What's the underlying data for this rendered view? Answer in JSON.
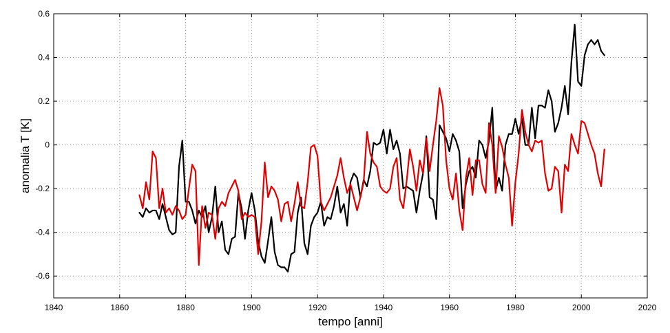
{
  "chart_data": {
    "type": "line",
    "title": "",
    "xlabel": "tempo [anni]",
    "ylabel": "anomalia T [K]",
    "xlim": [
      1840,
      2020
    ],
    "ylim": [
      -0.7,
      0.6
    ],
    "xticks": [
      1840,
      1860,
      1880,
      1900,
      1920,
      1940,
      1960,
      1980,
      2000,
      2020
    ],
    "yticks": [
      -0.6,
      -0.4,
      -0.2,
      0,
      0.2,
      0.4,
      0.6
    ],
    "xtick_labels": [
      "1840",
      "1860",
      "1880",
      "1900",
      "1920",
      "1940",
      "1960",
      "1980",
      "2000",
      "2020"
    ],
    "ytick_labels": [
      "-0.6",
      "-0.4",
      "-0.2",
      "0",
      "0.2",
      "0.4",
      "0.6"
    ],
    "grid": true,
    "legend": "none",
    "series": [
      {
        "color": "#000000",
        "x": [
          1866,
          1867,
          1868,
          1869,
          1870,
          1871,
          1872,
          1873,
          1874,
          1875,
          1876,
          1877,
          1878,
          1879,
          1880,
          1881,
          1882,
          1883,
          1884,
          1885,
          1886,
          1887,
          1888,
          1889,
          1890,
          1891,
          1892,
          1893,
          1894,
          1895,
          1896,
          1897,
          1898,
          1899,
          1900,
          1901,
          1902,
          1903,
          1904,
          1905,
          1906,
          1907,
          1908,
          1909,
          1910,
          1911,
          1912,
          1913,
          1914,
          1915,
          1916,
          1917,
          1918,
          1919,
          1920,
          1921,
          1922,
          1923,
          1924,
          1925,
          1926,
          1927,
          1928,
          1929,
          1930,
          1931,
          1932,
          1933,
          1934,
          1935,
          1936,
          1937,
          1938,
          1939,
          1940,
          1941,
          1942,
          1943,
          1944,
          1945,
          1946,
          1947,
          1948,
          1949,
          1950,
          1951,
          1952,
          1953,
          1954,
          1955,
          1956,
          1957,
          1958,
          1959,
          1960,
          1961,
          1962,
          1963,
          1964,
          1965,
          1966,
          1967,
          1968,
          1969,
          1970,
          1971,
          1972,
          1973,
          1974,
          1975,
          1976,
          1977,
          1978,
          1979,
          1980,
          1981,
          1982,
          1983,
          1984,
          1985,
          1986,
          1987,
          1988,
          1989,
          1990,
          1991,
          1992,
          1993,
          1994,
          1995,
          1996,
          1997,
          1998,
          1999,
          2000,
          2001,
          2002,
          2003,
          2004,
          2005,
          2006,
          2007
        ],
        "y": [
          -0.31,
          -0.33,
          -0.29,
          -0.31,
          -0.3,
          -0.3,
          -0.34,
          -0.27,
          -0.33,
          -0.39,
          -0.41,
          -0.4,
          -0.1,
          0.02,
          -0.26,
          -0.26,
          -0.3,
          -0.36,
          -0.3,
          -0.33,
          -0.28,
          -0.4,
          -0.33,
          -0.19,
          -0.4,
          -0.35,
          -0.48,
          -0.5,
          -0.43,
          -0.42,
          -0.22,
          -0.29,
          -0.43,
          -0.3,
          -0.22,
          -0.3,
          -0.44,
          -0.51,
          -0.54,
          -0.44,
          -0.33,
          -0.49,
          -0.55,
          -0.56,
          -0.56,
          -0.58,
          -0.5,
          -0.49,
          -0.31,
          -0.24,
          -0.45,
          -0.5,
          -0.37,
          -0.33,
          -0.31,
          -0.26,
          -0.37,
          -0.33,
          -0.34,
          -0.28,
          -0.19,
          -0.31,
          -0.27,
          -0.37,
          -0.17,
          -0.13,
          -0.15,
          -0.24,
          -0.16,
          -0.19,
          -0.12,
          0.01,
          0.0,
          0.01,
          0.07,
          -0.04,
          0.07,
          -0.02,
          0.02,
          -0.04,
          -0.2,
          -0.19,
          -0.2,
          -0.21,
          -0.31,
          -0.21,
          -0.13,
          0.04,
          -0.24,
          -0.25,
          -0.34,
          0.09,
          0.06,
          0.03,
          -0.03,
          0.05,
          0.02,
          -0.03,
          -0.29,
          -0.18,
          -0.12,
          -0.1,
          -0.15,
          0.02,
          0.0,
          -0.06,
          0.02,
          0.17,
          -0.21,
          -0.15,
          -0.21,
          0.0,
          0.05,
          0.05,
          0.12,
          0.05,
          0.12,
          0.0,
          0.0,
          0.17,
          0.03,
          0.18,
          0.18,
          0.17,
          0.25,
          0.2,
          0.06,
          0.1,
          0.17,
          0.27,
          0.14,
          0.38,
          0.55,
          0.29,
          0.27,
          0.41,
          0.46,
          0.48,
          0.46,
          0.48,
          0.43,
          0.41
        ]
      },
      {
        "color": "#e00000",
        "x": [
          1866,
          1867,
          1868,
          1869,
          1870,
          1871,
          1872,
          1873,
          1874,
          1875,
          1876,
          1877,
          1878,
          1879,
          1880,
          1881,
          1882,
          1883,
          1884,
          1885,
          1886,
          1887,
          1888,
          1889,
          1890,
          1891,
          1892,
          1893,
          1894,
          1895,
          1896,
          1897,
          1898,
          1899,
          1900,
          1901,
          1902,
          1903,
          1904,
          1905,
          1906,
          1907,
          1908,
          1909,
          1910,
          1911,
          1912,
          1913,
          1914,
          1915,
          1916,
          1917,
          1918,
          1919,
          1920,
          1921,
          1922,
          1923,
          1924,
          1925,
          1926,
          1927,
          1928,
          1929,
          1930,
          1931,
          1932,
          1933,
          1934,
          1935,
          1936,
          1937,
          1938,
          1939,
          1940,
          1941,
          1942,
          1943,
          1944,
          1945,
          1946,
          1947,
          1948,
          1949,
          1950,
          1951,
          1952,
          1953,
          1954,
          1955,
          1956,
          1957,
          1958,
          1959,
          1960,
          1961,
          1962,
          1963,
          1964,
          1965,
          1966,
          1967,
          1968,
          1969,
          1970,
          1971,
          1972,
          1973,
          1974,
          1975,
          1976,
          1977,
          1978,
          1979,
          1980,
          1981,
          1982,
          1983,
          1984,
          1985,
          1986,
          1987,
          1988,
          1989,
          1990,
          1991,
          1992,
          1993,
          1994,
          1995,
          1996,
          1997,
          1998,
          1999,
          2000,
          2001,
          2002,
          2003,
          2004,
          2005,
          2006,
          2007
        ],
        "y": [
          -0.23,
          -0.29,
          -0.17,
          -0.25,
          -0.03,
          -0.06,
          -0.29,
          -0.2,
          -0.31,
          -0.29,
          -0.32,
          -0.28,
          -0.3,
          -0.34,
          -0.32,
          -0.2,
          -0.09,
          -0.12,
          -0.55,
          -0.28,
          -0.38,
          -0.31,
          -0.32,
          -0.43,
          -0.29,
          -0.26,
          -0.28,
          -0.22,
          -0.19,
          -0.16,
          -0.21,
          -0.34,
          -0.31,
          -0.33,
          -0.32,
          -0.33,
          -0.5,
          -0.35,
          -0.08,
          -0.24,
          -0.19,
          -0.21,
          -0.25,
          -0.35,
          -0.27,
          -0.26,
          -0.35,
          -0.27,
          -0.17,
          -0.28,
          -0.29,
          -0.17,
          -0.01,
          0.0,
          -0.05,
          -0.26,
          -0.3,
          -0.27,
          -0.24,
          -0.19,
          -0.14,
          -0.06,
          -0.15,
          -0.22,
          -0.18,
          -0.24,
          -0.3,
          -0.24,
          -0.17,
          0.06,
          -0.04,
          -0.08,
          -0.1,
          -0.19,
          -0.21,
          -0.22,
          -0.2,
          -0.1,
          -0.06,
          -0.25,
          -0.29,
          -0.17,
          -0.02,
          -0.1,
          -0.21,
          -0.07,
          -0.13,
          0.03,
          -0.12,
          0.0,
          0.11,
          0.26,
          0.18,
          -0.07,
          -0.2,
          -0.25,
          -0.13,
          -0.3,
          -0.39,
          -0.15,
          -0.06,
          -0.23,
          -0.07,
          -0.07,
          -0.18,
          -0.22,
          0.1,
          0.0,
          -0.22,
          0.04,
          -0.01,
          -0.09,
          -0.15,
          -0.37,
          -0.17,
          -0.04,
          0.16,
          0.06,
          0.0,
          -0.03,
          0.02,
          0.01,
          0.02,
          -0.13,
          -0.21,
          -0.2,
          -0.1,
          -0.12,
          -0.31,
          -0.09,
          -0.12,
          0.05,
          0.0,
          -0.04,
          0.11,
          0.1,
          0.05,
          0.0,
          -0.04,
          -0.13,
          -0.19,
          -0.02
        ]
      }
    ]
  }
}
